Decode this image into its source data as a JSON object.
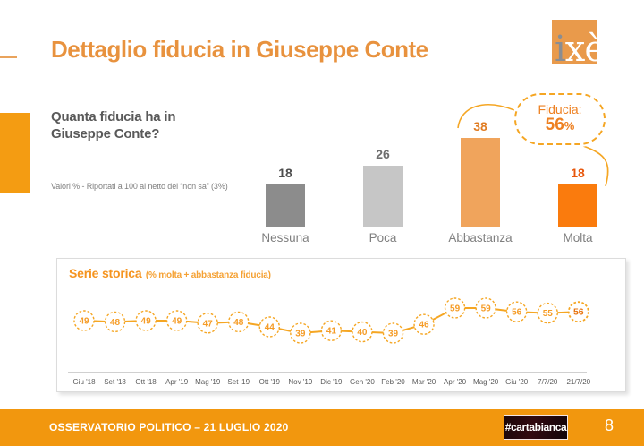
{
  "header": {
    "title": "Dettaglio fiducia in Giuseppe Conte",
    "logo_i": "i",
    "logo_xe": "xè"
  },
  "question": {
    "text": "Quanta fiducia ha in Giuseppe Conte?",
    "note": "Valori % - Riportati a 100 al netto dei “non sa” (3%)"
  },
  "badge": {
    "label": "Fiducia:",
    "value": "56",
    "suffix": "%"
  },
  "chart_data": [
    {
      "type": "bar",
      "title": "Quanta fiducia ha in Giuseppe Conte?",
      "categories": [
        "Nessuna",
        "Poca",
        "Abbastanza",
        "Molta"
      ],
      "values": [
        18,
        26,
        38,
        18
      ],
      "bar_colors": [
        "#8C8C8C",
        "#C6C6C6",
        "#F0A45C",
        "#FA7B0D"
      ],
      "value_label_colors": [
        "#4D4D4D",
        "#6E6E6E",
        "#E07B20",
        "#E8560B"
      ],
      "ylim": [
        0,
        45
      ],
      "grid": false,
      "note": "Valori % - Riportati a 100 al netto dei “non sa” (3%)"
    },
    {
      "type": "line",
      "title": "Serie storica",
      "subtitle": "(% molta + abbastanza fiducia)",
      "x": [
        "Giu '18",
        "Set '18",
        "Ott '18",
        "Apr '19",
        "Mag '19",
        "Set '19",
        "Ott '19",
        "Nov '19",
        "Dic '19",
        "Gen '20",
        "Feb '20",
        "Mar '20",
        "Apr '20",
        "Mag '20",
        "Giu '20",
        "7/7/20",
        "21/7/20"
      ],
      "values": [
        49,
        48,
        49,
        49,
        47,
        48,
        44,
        39,
        41,
        40,
        39,
        46,
        59,
        59,
        56,
        55,
        56
      ],
      "line_color": "#F5A623",
      "point_text_color": "#F59C27",
      "last_point_text_color": "#E8740E",
      "highlight_last": true,
      "ylim": [
        35,
        63
      ],
      "grid": false
    }
  ],
  "footer": {
    "text": "OSSERVATORIO POLITICO – 21 LUGLIO 2020",
    "brand": "#cartabianca",
    "page": "8"
  },
  "colors": {
    "accent_orange": "#E8923E",
    "footer_orange": "#F2970E",
    "side_accent_orange": "#F49C12",
    "series_line_orange": "#F5A623",
    "text_gray": "#595959"
  }
}
